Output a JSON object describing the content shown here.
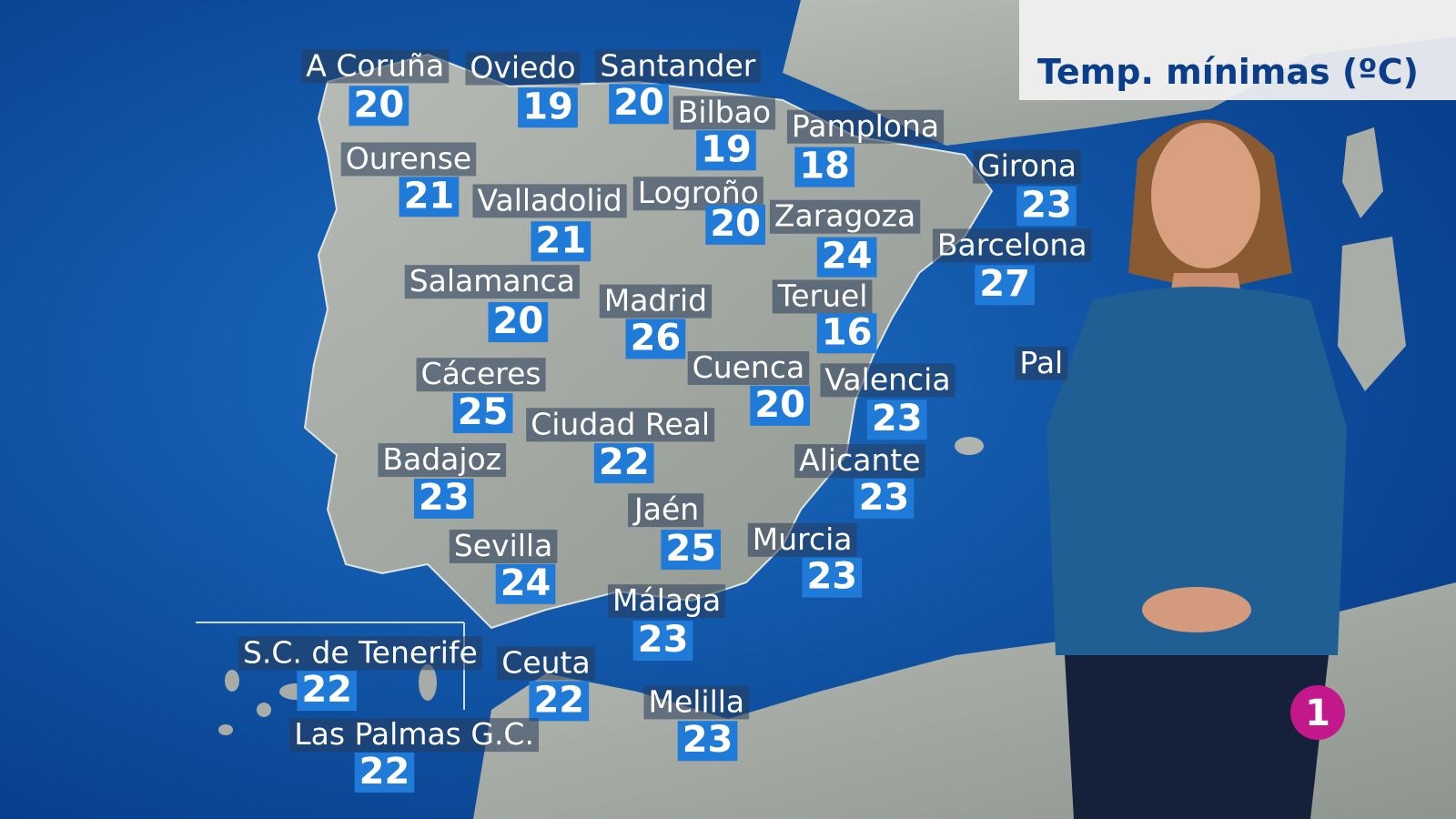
{
  "title": "Temp. mínimas (ºC)",
  "cities": [
    {
      "name": "A Coruña",
      "temp": 20
    },
    {
      "name": "Oviedo",
      "temp": 19
    },
    {
      "name": "Santander",
      "temp": 20
    },
    {
      "name": "Bilbao",
      "temp": 19
    },
    {
      "name": "Pamplona",
      "temp": 18
    },
    {
      "name": "Ourense",
      "temp": 21
    },
    {
      "name": "Valladolid",
      "temp": 21
    },
    {
      "name": "Logroño",
      "temp": 20
    },
    {
      "name": "Zaragoza",
      "temp": 24
    },
    {
      "name": "Girona",
      "temp": 23
    },
    {
      "name": "Barcelona",
      "temp": 27
    },
    {
      "name": "Salamanca",
      "temp": 20
    },
    {
      "name": "Madrid",
      "temp": 26
    },
    {
      "name": "Teruel",
      "temp": 16
    },
    {
      "name": "Cáceres",
      "temp": 25
    },
    {
      "name": "Cuenca",
      "temp": 20
    },
    {
      "name": "Valencia",
      "temp": 23
    },
    {
      "name": "Ciudad Real",
      "temp": 22
    },
    {
      "name": "Badajoz",
      "temp": 23
    },
    {
      "name": "Alicante",
      "temp": 23
    },
    {
      "name": "Jaén",
      "temp": 25
    },
    {
      "name": "Sevilla",
      "temp": 24
    },
    {
      "name": "Murcia",
      "temp": 23
    },
    {
      "name": "Málaga",
      "temp": 23
    },
    {
      "name": "S.C. de Tenerife",
      "temp": 22
    },
    {
      "name": "Ceuta",
      "temp": 22
    },
    {
      "name": "Melilla",
      "temp": 23
    },
    {
      "name": "Las Palmas G.C.",
      "temp": 22
    }
  ],
  "partial_label": "Pal",
  "channel_logo": "1"
}
